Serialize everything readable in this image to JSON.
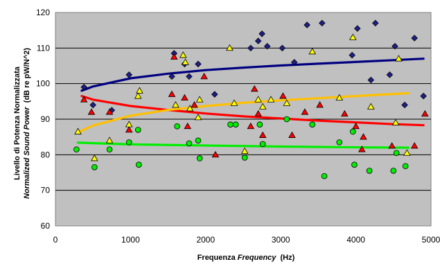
{
  "chart_data": {
    "type": "scatter",
    "title": "",
    "xlabel_main": "Frequenza ",
    "xlabel_italic": "Frequency",
    "xlabel_unit": "  (Hz)",
    "ylabel_line1": "Livello di Potenza Normalizzata",
    "ylabel_line2_italic": "Normalized Sound Power",
    "ylabel_line2_unit": "  (dB re pW/N^2)",
    "xlim": [
      0,
      5000
    ],
    "ylim": [
      60,
      120
    ],
    "x_ticks": [
      "0",
      "1000",
      "2000",
      "3000",
      "4000",
      "5000"
    ],
    "y_ticks": [
      "60",
      "70",
      "80",
      "90",
      "100",
      "110",
      "120"
    ],
    "grid": true,
    "legend": "none",
    "plot_background": "#c0c0c0",
    "series": [
      {
        "marker": "diamond",
        "color": "#1f1f8a",
        "points": [
          [
            380,
            99
          ],
          [
            500,
            94
          ],
          [
            750,
            92.5
          ],
          [
            980,
            102.5
          ],
          [
            1550,
            102
          ],
          [
            1580,
            108.5
          ],
          [
            1720,
            105.5
          ],
          [
            1780,
            102
          ],
          [
            1900,
            105.5
          ],
          [
            2120,
            97
          ],
          [
            2600,
            110
          ],
          [
            2700,
            112
          ],
          [
            2750,
            114
          ],
          [
            2820,
            110.5
          ],
          [
            3020,
            110
          ],
          [
            3180,
            106
          ],
          [
            3350,
            116.5
          ],
          [
            3550,
            117
          ],
          [
            3950,
            108
          ],
          [
            4020,
            115.5
          ],
          [
            4200,
            101
          ],
          [
            4260,
            117
          ],
          [
            4450,
            102.5
          ],
          [
            4520,
            110.5
          ],
          [
            4650,
            94
          ],
          [
            4780,
            112.8
          ],
          [
            4900,
            96.5
          ]
        ]
      },
      {
        "marker": "triangle",
        "color": "#ff0000",
        "points": [
          [
            380,
            95.5
          ],
          [
            480,
            92
          ],
          [
            720,
            92
          ],
          [
            980,
            87
          ],
          [
            1550,
            97
          ],
          [
            1580,
            107.5
          ],
          [
            1720,
            96
          ],
          [
            1760,
            88
          ],
          [
            1850,
            94
          ],
          [
            1980,
            102
          ],
          [
            2130,
            80
          ],
          [
            2600,
            88
          ],
          [
            2650,
            98.5
          ],
          [
            2700,
            91.5
          ],
          [
            2760,
            85.5
          ],
          [
            3030,
            96.5
          ],
          [
            3150,
            85.5
          ],
          [
            3320,
            92
          ],
          [
            3520,
            94
          ],
          [
            3850,
            91.5
          ],
          [
            4000,
            88
          ],
          [
            4080,
            81.5
          ],
          [
            4100,
            85
          ],
          [
            4480,
            82.5
          ],
          [
            4780,
            82.5
          ],
          [
            4920,
            91.5
          ]
        ]
      },
      {
        "marker": "triangle",
        "color": "#ffff00",
        "points": [
          [
            300,
            86.5
          ],
          [
            520,
            79
          ],
          [
            720,
            84
          ],
          [
            980,
            88.5
          ],
          [
            1100,
            96.5
          ],
          [
            1120,
            98
          ],
          [
            1600,
            94
          ],
          [
            1700,
            108
          ],
          [
            1730,
            106
          ],
          [
            1790,
            93
          ],
          [
            1900,
            90.5
          ],
          [
            1920,
            95.5
          ],
          [
            2320,
            110
          ],
          [
            2380,
            94.5
          ],
          [
            2520,
            81
          ],
          [
            2700,
            95.5
          ],
          [
            2760,
            93.5
          ],
          [
            2870,
            95.5
          ],
          [
            3080,
            94.5
          ],
          [
            3420,
            109
          ],
          [
            3780,
            96
          ],
          [
            3960,
            113
          ],
          [
            4200,
            93.5
          ],
          [
            4530,
            89
          ],
          [
            4570,
            107
          ],
          [
            4680,
            80.5
          ]
        ]
      },
      {
        "marker": "circle",
        "color": "#00ee00",
        "points": [
          [
            280,
            81.5
          ],
          [
            520,
            76.5
          ],
          [
            720,
            81.5
          ],
          [
            980,
            83.5
          ],
          [
            1100,
            87
          ],
          [
            1110,
            77.2
          ],
          [
            1620,
            88
          ],
          [
            1780,
            83.2
          ],
          [
            1900,
            84
          ],
          [
            1920,
            79
          ],
          [
            2330,
            88.5
          ],
          [
            2400,
            88.5
          ],
          [
            2520,
            79.2
          ],
          [
            2720,
            88.5
          ],
          [
            2760,
            83
          ],
          [
            3080,
            90
          ],
          [
            3420,
            88.5
          ],
          [
            3580,
            74
          ],
          [
            3780,
            83.5
          ],
          [
            3960,
            86.5
          ],
          [
            3980,
            77.2
          ],
          [
            4180,
            75.5
          ],
          [
            4500,
            75.5
          ],
          [
            4540,
            80.5
          ],
          [
            4660,
            76.8
          ]
        ]
      }
    ],
    "trendlines": [
      {
        "color": "#000080",
        "x": [
          350,
          500,
          1000,
          1500,
          2000,
          2500,
          3000,
          3500,
          4000,
          4500,
          4900
        ],
        "y": [
          98,
          99.2,
          101.5,
          102.8,
          103.8,
          104.5,
          105.1,
          105.6,
          106.1,
          106.6,
          107
        ]
      },
      {
        "color": "#ff0000",
        "x": [
          350,
          500,
          1000,
          1500,
          2000,
          2500,
          3000,
          3500,
          4000,
          4500,
          4900
        ],
        "y": [
          96.5,
          95.5,
          93.7,
          92.6,
          91.6,
          90.8,
          90.2,
          89.6,
          89.1,
          88.6,
          88.3
        ]
      },
      {
        "color": "#ffc000",
        "x": [
          300,
          500,
          1000,
          1500,
          2000,
          2500,
          3000,
          3500,
          4000,
          4500,
          4700
        ],
        "y": [
          86.3,
          88.2,
          91,
          92.6,
          93.7,
          94.6,
          95.3,
          95.9,
          96.5,
          97.1,
          97.3
        ]
      },
      {
        "color": "#00ee00",
        "x": [
          300,
          1000,
          2000,
          3000,
          4000,
          4700
        ],
        "y": [
          83.4,
          82.9,
          82.6,
          82.3,
          82.1,
          82
        ]
      }
    ]
  }
}
